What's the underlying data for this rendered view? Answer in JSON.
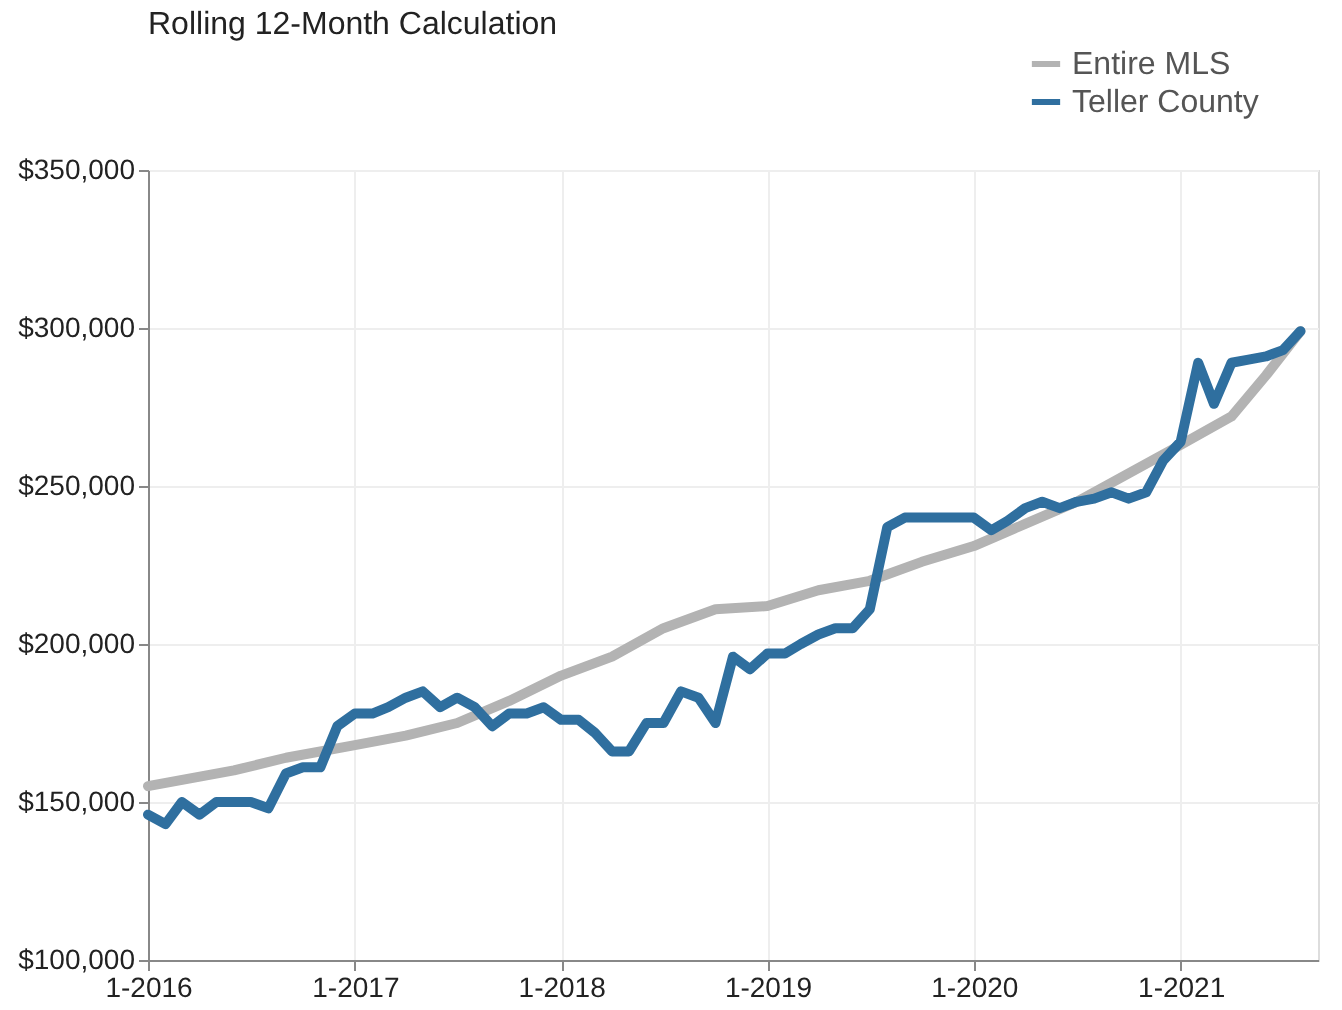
{
  "chart_data": {
    "type": "line",
    "title": "Rolling 12-Month Calculation",
    "xlim": [
      "2016-01",
      "2021-09"
    ],
    "xticks": [
      {
        "value": "2016-01",
        "label": "1-2016"
      },
      {
        "value": "2017-01",
        "label": "1-2017"
      },
      {
        "value": "2018-01",
        "label": "1-2018"
      },
      {
        "value": "2019-01",
        "label": "1-2019"
      },
      {
        "value": "2020-01",
        "label": "1-2020"
      },
      {
        "value": "2021-01",
        "label": "1-2021"
      }
    ],
    "ylim": [
      100000,
      350000
    ],
    "yticks": [
      {
        "value": 100000,
        "label": "$100,000"
      },
      {
        "value": 150000,
        "label": "$150,000"
      },
      {
        "value": 200000,
        "label": "$200,000"
      },
      {
        "value": 250000,
        "label": "$250,000"
      },
      {
        "value": 300000,
        "label": "$300,000"
      },
      {
        "value": 350000,
        "label": "$350,000"
      }
    ],
    "grid": true,
    "legend": "top right",
    "marker": "none",
    "line_style": "solid",
    "series": [
      {
        "name": "Entire MLS",
        "color": "#b3b3b3",
        "x": [
          "2016-01",
          "2016-06",
          "2016-09",
          "2017-01",
          "2017-04",
          "2017-07",
          "2017-10",
          "2018-01",
          "2018-04",
          "2018-07",
          "2018-10",
          "2019-01",
          "2019-04",
          "2019-07",
          "2019-10",
          "2020-01",
          "2020-04",
          "2020-07",
          "2020-10",
          "2021-01",
          "2021-04",
          "2021-06",
          "2021-08"
        ],
        "values": [
          155000,
          160000,
          164000,
          168000,
          171000,
          175000,
          182000,
          190000,
          196000,
          205000,
          211000,
          212000,
          217000,
          220000,
          226000,
          231000,
          238000,
          245000,
          254000,
          263000,
          272000,
          285000,
          299000
        ]
      },
      {
        "name": "Teller County",
        "color": "#2f6f9f",
        "x": [
          "2016-01",
          "2016-02",
          "2016-03",
          "2016-04",
          "2016-05",
          "2016-06",
          "2016-07",
          "2016-08",
          "2016-09",
          "2016-10",
          "2016-11",
          "2016-12",
          "2017-01",
          "2017-02",
          "2017-03",
          "2017-04",
          "2017-05",
          "2017-06",
          "2017-07",
          "2017-08",
          "2017-09",
          "2017-10",
          "2017-11",
          "2017-12",
          "2018-01",
          "2018-02",
          "2018-03",
          "2018-04",
          "2018-05",
          "2018-06",
          "2018-07",
          "2018-08",
          "2018-09",
          "2018-10",
          "2018-11",
          "2018-12",
          "2019-01",
          "2019-02",
          "2019-03",
          "2019-04",
          "2019-05",
          "2019-06",
          "2019-07",
          "2019-08",
          "2019-09",
          "2019-10",
          "2019-11",
          "2019-12",
          "2020-01",
          "2020-02",
          "2020-03",
          "2020-04",
          "2020-05",
          "2020-06",
          "2020-07",
          "2020-08",
          "2020-09",
          "2020-10",
          "2020-11",
          "2020-12",
          "2021-01",
          "2021-02",
          "2021-03",
          "2021-04",
          "2021-05",
          "2021-06",
          "2021-07",
          "2021-08"
        ],
        "values": [
          146000,
          143000,
          150000,
          146000,
          150000,
          150000,
          150000,
          148000,
          159000,
          161000,
          161000,
          174000,
          178000,
          178000,
          180000,
          183000,
          185000,
          180000,
          183000,
          180000,
          174000,
          178000,
          178000,
          180000,
          176000,
          176000,
          172000,
          166000,
          166000,
          175000,
          175000,
          185000,
          183000,
          175000,
          196000,
          192000,
          197000,
          197000,
          200000,
          203000,
          205000,
          205000,
          211000,
          237000,
          240000,
          240000,
          240000,
          240000,
          240000,
          236000,
          239000,
          243000,
          245000,
          243000,
          245000,
          246000,
          248000,
          246000,
          248000,
          258000,
          264000,
          289000,
          276000,
          289000,
          290000,
          291000,
          293000,
          299000
        ]
      }
    ]
  }
}
